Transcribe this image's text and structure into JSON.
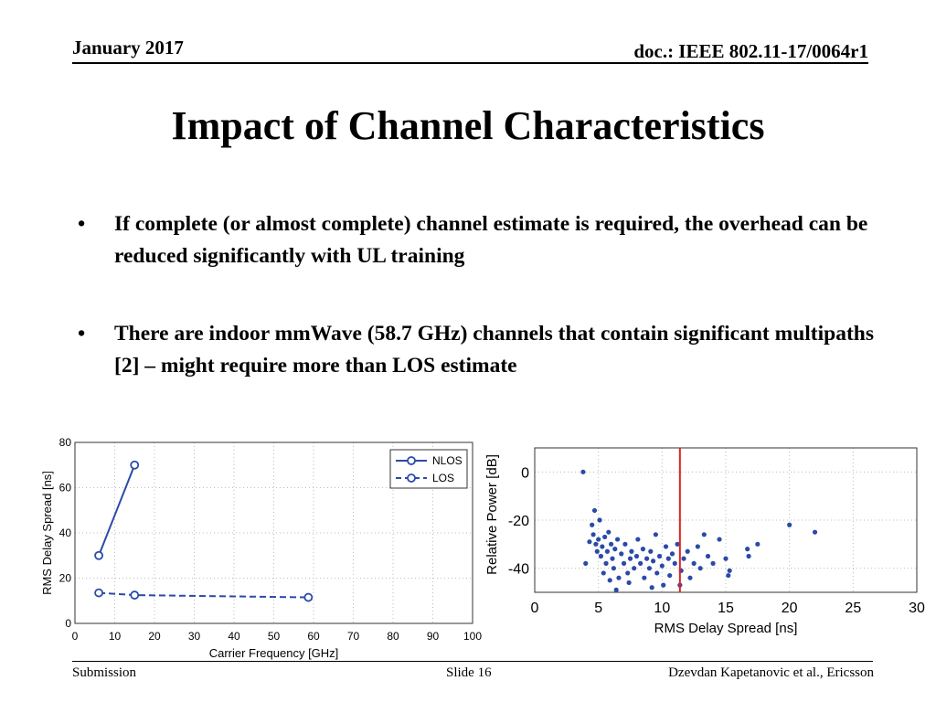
{
  "header": {
    "date": "January 2017",
    "doc_id": "doc.: IEEE 802.11-17/0064r1"
  },
  "slide": {
    "title": "Impact of Channel Characteristics",
    "bullets": [
      "If complete (or almost complete) channel estimate is required, the overhead can be reduced significantly with UL training",
      "There are indoor mmWave (58.7 GHz) channels that contain significant multipaths [2] – might require more than LOS estimate"
    ]
  },
  "footer": {
    "left": "Submission",
    "center": "Slide 16",
    "right": "Dzevdan Kapetanovic et al., Ericsson"
  },
  "chart_data": [
    {
      "type": "line",
      "xlabel": "Carrier Frequency [GHz]",
      "ylabel": "RMS Delay Spread [ns]",
      "xlim": [
        0,
        100
      ],
      "ylim": [
        0,
        80
      ],
      "xticks": [
        0,
        10,
        20,
        30,
        40,
        50,
        60,
        70,
        80,
        90,
        100
      ],
      "yticks": [
        0,
        20,
        40,
        60,
        80
      ],
      "grid": true,
      "legend_position": "top-right",
      "series": [
        {
          "name": "NLOS",
          "color": "#2b4aa8",
          "dash": "solid",
          "x": [
            6,
            15
          ],
          "y": [
            30,
            70
          ]
        },
        {
          "name": "LOS",
          "color": "#2b4aa8",
          "dash": "dashed",
          "x": [
            6,
            15,
            58.7
          ],
          "y": [
            13.5,
            12.5,
            11.5
          ]
        }
      ]
    },
    {
      "type": "scatter",
      "xlabel": "RMS Delay Spread [ns]",
      "ylabel": "Relative Power [dB]",
      "xlim": [
        0,
        30
      ],
      "ylim": [
        -50,
        10
      ],
      "xticks": [
        0,
        5,
        10,
        15,
        20,
        25,
        30
      ],
      "yticks": [
        0,
        -20,
        -40
      ],
      "grid": true,
      "color": "#2b4aa8",
      "vline": {
        "x": 11.4,
        "color": "#dd2222"
      },
      "points": [
        [
          3.8,
          0
        ],
        [
          4.0,
          -38
        ],
        [
          4.3,
          -29
        ],
        [
          4.5,
          -22
        ],
        [
          4.6,
          -26
        ],
        [
          4.7,
          -16
        ],
        [
          4.8,
          -30
        ],
        [
          4.9,
          -33
        ],
        [
          5.0,
          -28
        ],
        [
          5.1,
          -20
        ],
        [
          5.2,
          -35
        ],
        [
          5.3,
          -31
        ],
        [
          5.4,
          -42
        ],
        [
          5.5,
          -27
        ],
        [
          5.6,
          -38
        ],
        [
          5.7,
          -33
        ],
        [
          5.8,
          -25
        ],
        [
          5.9,
          -45
        ],
        [
          6.0,
          -30
        ],
        [
          6.1,
          -36
        ],
        [
          6.2,
          -40
        ],
        [
          6.3,
          -32
        ],
        [
          6.5,
          -28
        ],
        [
          6.6,
          -44
        ],
        [
          6.8,
          -34
        ],
        [
          7.0,
          -38
        ],
        [
          7.1,
          -30
        ],
        [
          7.3,
          -42
        ],
        [
          7.5,
          -36
        ],
        [
          7.6,
          -33
        ],
        [
          7.8,
          -40
        ],
        [
          8.0,
          -35
        ],
        [
          8.1,
          -28
        ],
        [
          8.3,
          -38
        ],
        [
          8.5,
          -32
        ],
        [
          8.6,
          -44
        ],
        [
          8.8,
          -36
        ],
        [
          9.0,
          -40
        ],
        [
          9.1,
          -33
        ],
        [
          9.3,
          -37
        ],
        [
          9.5,
          -26
        ],
        [
          9.6,
          -42
        ],
        [
          9.8,
          -35
        ],
        [
          10.0,
          -39
        ],
        [
          10.1,
          -47
        ],
        [
          10.3,
          -31
        ],
        [
          10.5,
          -36
        ],
        [
          10.6,
          -43
        ],
        [
          10.8,
          -34
        ],
        [
          11.0,
          -38
        ],
        [
          11.2,
          -30
        ],
        [
          11.5,
          -41
        ],
        [
          11.7,
          -36
        ],
        [
          12.0,
          -33
        ],
        [
          12.2,
          -44
        ],
        [
          12.5,
          -38
        ],
        [
          12.8,
          -31
        ],
        [
          13.0,
          -40
        ],
        [
          13.3,
          -26
        ],
        [
          13.6,
          -35
        ],
        [
          14.0,
          -38
        ],
        [
          14.5,
          -28
        ],
        [
          15.0,
          -36
        ],
        [
          15.3,
          -41
        ],
        [
          16.7,
          -32
        ],
        [
          16.8,
          -35
        ],
        [
          17.5,
          -30
        ],
        [
          20.0,
          -22
        ],
        [
          22.0,
          -25
        ],
        [
          6.4,
          -49
        ],
        [
          9.2,
          -48
        ],
        [
          11.4,
          -47
        ],
        [
          15.2,
          -43
        ],
        [
          7.4,
          -46
        ]
      ]
    }
  ]
}
